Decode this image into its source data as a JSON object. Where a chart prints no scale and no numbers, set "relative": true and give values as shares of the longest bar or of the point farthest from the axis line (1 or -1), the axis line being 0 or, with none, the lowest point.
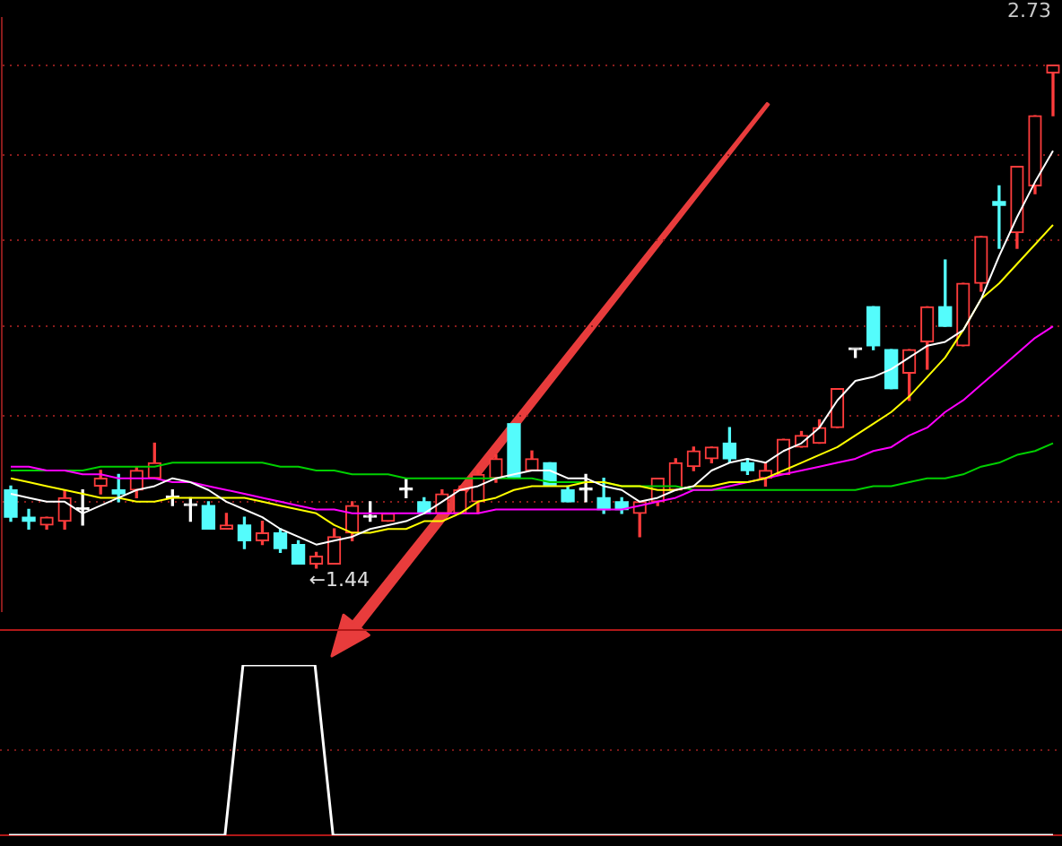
{
  "chart_data": [
    {
      "type": "candlestick",
      "categories": [
        null,
        null,
        null,
        null,
        null,
        null,
        null,
        null,
        null,
        null,
        null,
        null,
        null,
        null,
        null,
        null,
        null,
        null,
        null,
        null,
        null,
        null,
        null,
        null,
        null,
        null,
        null,
        null,
        null,
        null,
        null,
        null,
        null,
        null,
        null,
        null,
        null,
        null,
        null,
        null,
        null,
        null,
        null,
        null,
        null,
        null,
        null,
        null,
        null,
        null,
        null,
        null,
        null,
        null,
        null,
        null,
        null,
        null,
        null
      ],
      "ohlc": [
        [
          1.64,
          1.65,
          1.56,
          1.57
        ],
        [
          1.57,
          1.59,
          1.54,
          1.56
        ],
        [
          1.55,
          1.57,
          1.54,
          1.57
        ],
        [
          1.56,
          1.64,
          1.54,
          1.62
        ],
        [
          1.59,
          1.64,
          1.55,
          1.59
        ],
        [
          1.65,
          1.69,
          1.63,
          1.67
        ],
        [
          1.64,
          1.68,
          1.61,
          1.63
        ],
        [
          1.64,
          1.7,
          1.62,
          1.69
        ],
        [
          1.67,
          1.76,
          1.67,
          1.71
        ],
        [
          1.62,
          1.64,
          1.6,
          1.62
        ],
        [
          1.6,
          1.62,
          1.56,
          1.6
        ],
        [
          1.6,
          1.61,
          1.54,
          1.54
        ],
        [
          1.54,
          1.58,
          1.54,
          1.55
        ],
        [
          1.55,
          1.57,
          1.49,
          1.51
        ],
        [
          1.51,
          1.56,
          1.5,
          1.53
        ],
        [
          1.53,
          1.54,
          1.48,
          1.49
        ],
        [
          1.5,
          1.51,
          1.45,
          1.45
        ],
        [
          1.45,
          1.48,
          1.44,
          1.47
        ],
        [
          1.45,
          1.54,
          1.45,
          1.52
        ],
        [
          1.53,
          1.61,
          1.51,
          1.6
        ],
        [
          1.57,
          1.61,
          1.56,
          1.57
        ],
        [
          1.56,
          1.58,
          1.56,
          1.58
        ],
        [
          1.64,
          1.67,
          1.62,
          1.64
        ],
        [
          1.61,
          1.62,
          1.58,
          1.58
        ],
        [
          1.58,
          1.64,
          1.58,
          1.63
        ],
        [
          1.58,
          1.65,
          1.58,
          1.64
        ],
        [
          1.61,
          1.69,
          1.58,
          1.68
        ],
        [
          1.67,
          1.73,
          1.66,
          1.72
        ],
        [
          1.81,
          1.81,
          1.67,
          1.67
        ],
        [
          1.69,
          1.74,
          1.69,
          1.72
        ],
        [
          1.71,
          1.71,
          1.65,
          1.65
        ],
        [
          1.64,
          1.65,
          1.61,
          1.61
        ],
        [
          1.64,
          1.68,
          1.61,
          1.64
        ],
        [
          1.62,
          1.67,
          1.58,
          1.59
        ],
        [
          1.61,
          1.62,
          1.58,
          1.59
        ],
        [
          1.58,
          1.61,
          1.52,
          1.61
        ],
        [
          1.61,
          1.67,
          1.6,
          1.67
        ],
        [
          1.64,
          1.72,
          1.64,
          1.71
        ],
        [
          1.7,
          1.75,
          1.69,
          1.74
        ],
        [
          1.72,
          1.75,
          1.71,
          1.75
        ],
        [
          1.76,
          1.8,
          1.71,
          1.72
        ],
        [
          1.71,
          1.72,
          1.68,
          1.69
        ],
        [
          1.67,
          1.71,
          1.65,
          1.69
        ],
        [
          1.68,
          1.77,
          1.68,
          1.77
        ],
        [
          1.75,
          1.79,
          1.75,
          1.78
        ],
        [
          1.76,
          1.82,
          1.76,
          1.8
        ],
        [
          1.8,
          1.9,
          1.8,
          1.9
        ],
        [
          2.0,
          2.0,
          1.98,
          2.0
        ],
        [
          2.11,
          2.11,
          2.0,
          2.01
        ],
        [
          2.0,
          2.0,
          1.9,
          1.9
        ],
        [
          1.94,
          2.0,
          1.87,
          2.0
        ],
        [
          2.02,
          2.11,
          1.95,
          2.11
        ],
        [
          2.11,
          2.23,
          2.06,
          2.06
        ],
        [
          2.01,
          2.17,
          2.01,
          2.17
        ],
        [
          2.17,
          2.29,
          2.15,
          2.29
        ],
        [
          2.38,
          2.42,
          2.26,
          2.37
        ],
        [
          2.3,
          2.47,
          2.26,
          2.47
        ],
        [
          2.42,
          2.6,
          2.4,
          2.6
        ],
        [
          2.71,
          2.73,
          2.6,
          2.73
        ]
      ],
      "colors": [
        "#54fcfc",
        "#54fcfc",
        "#ff3c3c",
        "#ff3c3c",
        "#ffffff",
        "#ff3c3c",
        "#54fcfc",
        "#ff3c3c",
        "#ff3c3c",
        "#ffffff",
        "#ffffff",
        "#54fcfc",
        "#ff3c3c",
        "#54fcfc",
        "#ff3c3c",
        "#54fcfc",
        "#54fcfc",
        "#ff3c3c",
        "#ff3c3c",
        "#ff3c3c",
        "#ffffff",
        "#ff3c3c",
        "#ffffff",
        "#54fcfc",
        "#ff3c3c",
        "#ff3c3c",
        "#ff3c3c",
        "#ff3c3c",
        "#54fcfc",
        "#ff3c3c",
        "#54fcfc",
        "#54fcfc",
        "#ffffff",
        "#54fcfc",
        "#54fcfc",
        "#ff3c3c",
        "#ff3c3c",
        "#ff3c3c",
        "#ff3c3c",
        "#ff3c3c",
        "#54fcfc",
        "#54fcfc",
        "#ff3c3c",
        "#ff3c3c",
        "#ff3c3c",
        "#ff3c3c",
        "#ff3c3c",
        "#ffffff",
        "#54fcfc",
        "#54fcfc",
        "#ff3c3c",
        "#ff3c3c",
        "#54fcfc",
        "#ff3c3c",
        "#ff3c3c",
        "#54fcfc",
        "#ff3c3c",
        "#ff3c3c",
        "#ff3c3c"
      ],
      "series": [
        {
          "type": "line",
          "color": "#ffffff",
          "values": [
            1.63,
            1.62,
            1.61,
            1.61,
            1.58,
            1.6,
            1.62,
            1.64,
            1.65,
            1.67,
            1.66,
            1.64,
            1.61,
            1.59,
            1.57,
            1.54,
            1.52,
            1.5,
            1.51,
            1.52,
            1.54,
            1.55,
            1.56,
            1.58,
            1.61,
            1.64,
            1.65,
            1.67,
            1.68,
            1.69,
            1.69,
            1.67,
            1.67,
            1.65,
            1.64,
            1.61,
            1.62,
            1.64,
            1.65,
            1.69,
            1.71,
            1.72,
            1.71,
            1.74,
            1.76,
            1.8,
            1.87,
            1.92,
            1.93,
            1.95,
            1.98,
            2.01,
            2.02,
            2.05,
            2.13,
            2.24,
            2.34,
            2.43,
            2.51
          ]
        },
        {
          "type": "line",
          "color": "#ffff00",
          "values": [
            1.67,
            1.66,
            1.65,
            1.64,
            1.63,
            1.62,
            1.62,
            1.61,
            1.61,
            1.62,
            1.62,
            1.62,
            1.62,
            1.62,
            1.61,
            1.6,
            1.59,
            1.58,
            1.55,
            1.53,
            1.53,
            1.54,
            1.54,
            1.56,
            1.56,
            1.58,
            1.61,
            1.62,
            1.64,
            1.65,
            1.65,
            1.65,
            1.66,
            1.66,
            1.65,
            1.65,
            1.64,
            1.64,
            1.65,
            1.65,
            1.66,
            1.66,
            1.67,
            1.69,
            1.71,
            1.73,
            1.75,
            1.78,
            1.81,
            1.84,
            1.88,
            1.93,
            1.98,
            2.05,
            2.13,
            2.17,
            2.22,
            2.27,
            2.32
          ]
        },
        {
          "type": "line",
          "color": "#ff00ff",
          "values": [
            1.7,
            1.7,
            1.69,
            1.69,
            1.68,
            1.68,
            1.67,
            1.67,
            1.67,
            1.66,
            1.66,
            1.65,
            1.64,
            1.63,
            1.62,
            1.61,
            1.6,
            1.59,
            1.59,
            1.58,
            1.58,
            1.58,
            1.58,
            1.58,
            1.58,
            1.58,
            1.58,
            1.59,
            1.59,
            1.59,
            1.59,
            1.59,
            1.59,
            1.59,
            1.59,
            1.6,
            1.61,
            1.62,
            1.64,
            1.64,
            1.65,
            1.66,
            1.67,
            1.68,
            1.69,
            1.7,
            1.71,
            1.72,
            1.74,
            1.75,
            1.78,
            1.8,
            1.84,
            1.87,
            1.91,
            1.95,
            1.99,
            2.03,
            2.06
          ]
        },
        {
          "type": "line",
          "color": "#00d000",
          "values": [
            1.69,
            1.69,
            1.69,
            1.69,
            1.69,
            1.7,
            1.7,
            1.7,
            1.7,
            1.71,
            1.71,
            1.71,
            1.71,
            1.71,
            1.71,
            1.7,
            1.7,
            1.69,
            1.69,
            1.68,
            1.68,
            1.68,
            1.67,
            1.67,
            1.67,
            1.67,
            1.67,
            1.67,
            1.67,
            1.67,
            1.66,
            1.66,
            1.66,
            1.66,
            1.65,
            1.65,
            1.65,
            1.65,
            1.64,
            1.64,
            1.64,
            1.64,
            1.64,
            1.64,
            1.64,
            1.64,
            1.64,
            1.64,
            1.65,
            1.65,
            1.66,
            1.67,
            1.67,
            1.68,
            1.7,
            1.71,
            1.73,
            1.74,
            1.76
          ]
        }
      ],
      "yticks": [
        {
          "value": 2.73,
          "label": null
        },
        {
          "value": 2.5,
          "label": null
        },
        {
          "value": 2.28,
          "label": null
        },
        {
          "value": 2.06,
          "label": null
        },
        {
          "value": 1.83,
          "label": null
        },
        {
          "value": 1.61,
          "label": null
        }
      ],
      "ylim": [
        1.33,
        2.85
      ],
      "grid": "y",
      "marker": "none",
      "annotations": [
        "2.73",
        {
          "text": "←1.44",
          "y": 1.44
        }
      ]
    },
    {
      "type": "line",
      "relative": true,
      "categories": [
        null,
        null,
        null,
        null,
        null,
        null,
        null,
        null,
        null,
        null,
        null,
        null,
        null,
        null,
        null,
        null,
        null,
        null,
        null,
        null,
        null,
        null,
        null,
        null,
        null,
        null,
        null,
        null,
        null,
        null,
        null,
        null,
        null,
        null,
        null,
        null,
        null,
        null,
        null,
        null,
        null,
        null,
        null,
        null,
        null,
        null,
        null,
        null,
        null,
        null,
        null,
        null,
        null,
        null,
        null,
        null,
        null,
        null,
        null
      ],
      "values": [
        0,
        0,
        0,
        0,
        0,
        0,
        0,
        0,
        0,
        0,
        0,
        0,
        0,
        1,
        1,
        1,
        1,
        1,
        0,
        0,
        0,
        0,
        0,
        0,
        0,
        0,
        0,
        0,
        0,
        0,
        0,
        0,
        0,
        0,
        0,
        0,
        0,
        0,
        0,
        0,
        0,
        0,
        0,
        0,
        0,
        0,
        0,
        0,
        0,
        0,
        0,
        0,
        0,
        0,
        0,
        0,
        0,
        0,
        0
      ],
      "color": "#ffffff",
      "marker": "none",
      "ref_lines": [
        {
          "axis": "y",
          "value": 0.5,
          "color": "#7a1818",
          "line_style": "dotted"
        }
      ]
    }
  ]
}
